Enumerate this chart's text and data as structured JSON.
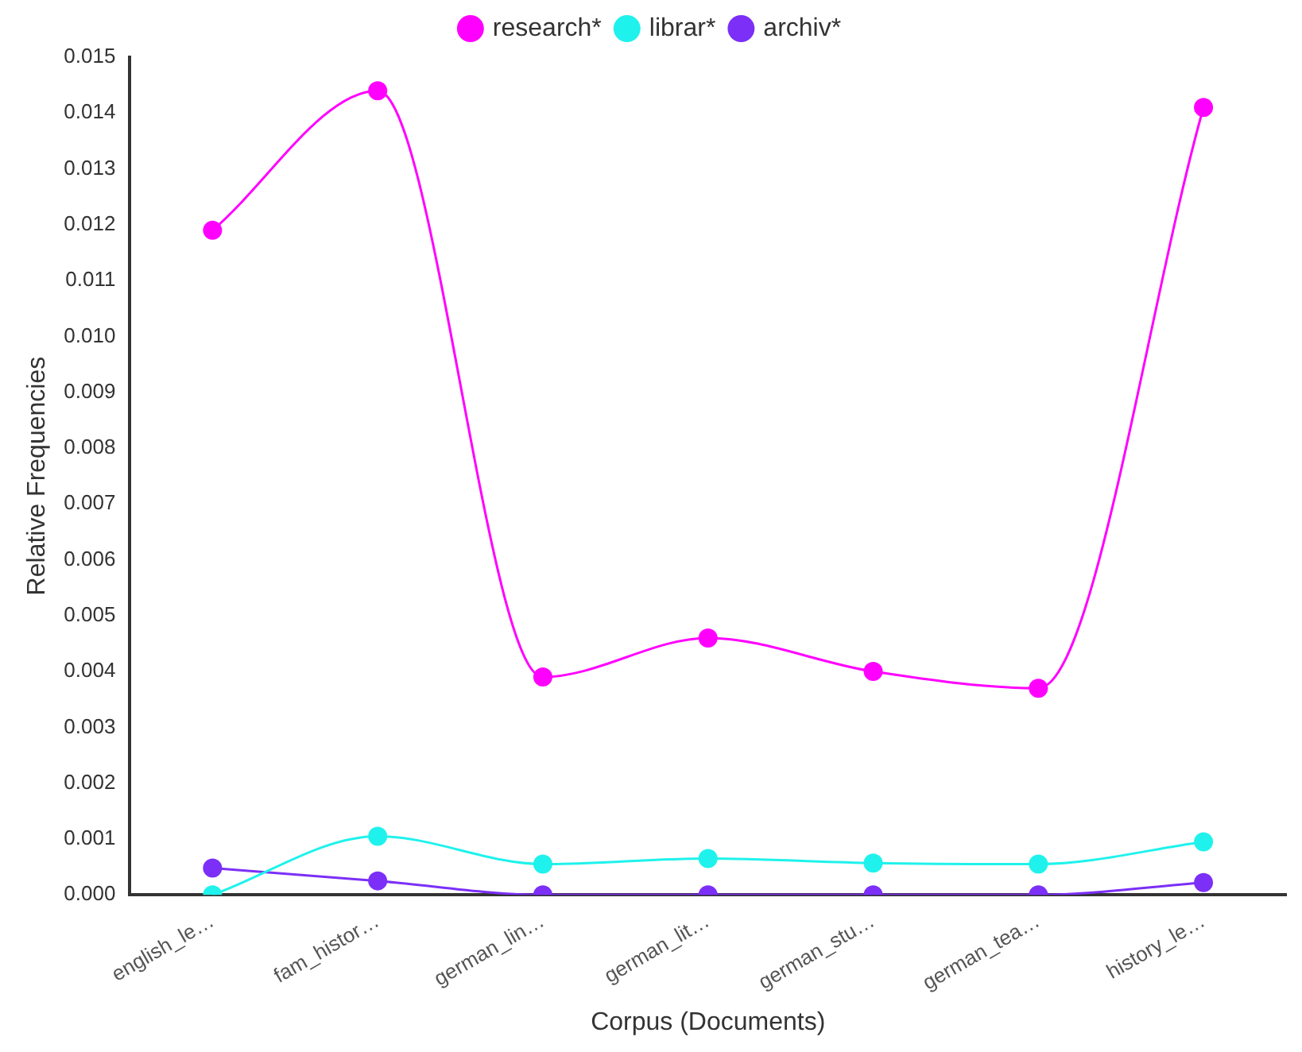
{
  "chart_data": {
    "type": "line",
    "xlabel": "Corpus (Documents)",
    "ylabel": "Relative Frequencies",
    "categories": [
      "english_le…",
      "fam_histor…",
      "german_lin…",
      "german_lit…",
      "german_stu…",
      "german_tea…",
      "history_le…"
    ],
    "series": [
      {
        "name": "research*",
        "color": "#ff00ff",
        "values": [
          0.0119,
          0.0144,
          0.0039,
          0.0046,
          0.004,
          0.0037,
          0.0141
        ]
      },
      {
        "name": "librar*",
        "color": "#1ff2ec",
        "values": [
          0,
          0.00105,
          0.00055,
          0.00065,
          0.00057,
          0.00055,
          0.00095
        ]
      },
      {
        "name": "archiv*",
        "color": "#7b2ff7",
        "values": [
          0.00048,
          0.00025,
          0,
          0,
          0,
          0,
          0.00022
        ]
      }
    ],
    "ylim": [
      0,
      0.015
    ],
    "yticks": [
      {
        "value": 0,
        "label": "0.000"
      },
      0.001,
      0.002,
      0.003,
      0.004,
      0.005,
      0.006,
      0.007,
      0.008,
      0.009,
      {
        "value": 0.01,
        "label": "0.010"
      },
      0.011,
      0.012,
      0.013,
      0.014,
      0.015
    ],
    "grid": false,
    "legend": "top",
    "marker": "circle",
    "line_style": "solid"
  }
}
